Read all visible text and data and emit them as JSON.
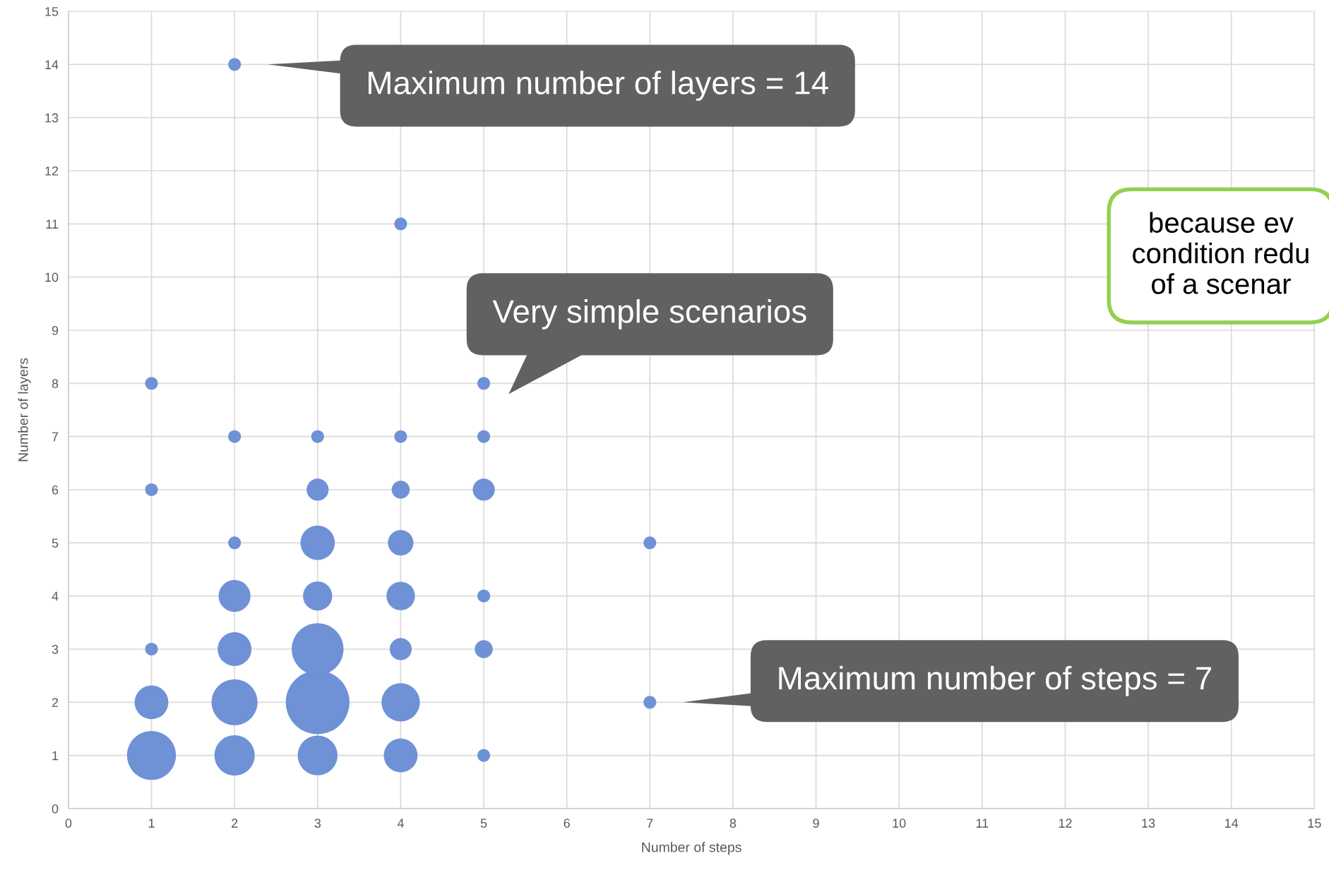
{
  "chart_data": {
    "type": "bubble",
    "xlabel": "Number of steps",
    "ylabel": "Number of layers",
    "x": [
      1,
      1,
      1,
      1,
      1,
      2,
      2,
      2,
      2,
      2,
      2,
      2,
      3,
      3,
      3,
      3,
      3,
      3,
      3,
      4,
      4,
      4,
      4,
      4,
      4,
      4,
      4,
      5,
      5,
      5,
      5,
      5,
      5,
      7,
      7
    ],
    "values": [
      1,
      2,
      3,
      6,
      8,
      1,
      2,
      3,
      4,
      5,
      7,
      14,
      1,
      2,
      3,
      4,
      5,
      6,
      7,
      1,
      2,
      3,
      4,
      5,
      6,
      7,
      11,
      1,
      3,
      4,
      6,
      7,
      8,
      5,
      2
    ],
    "sizes": [
      0.59,
      0.28,
      0.04,
      0.04,
      0.04,
      0.4,
      0.52,
      0.28,
      0.25,
      0.04,
      0.04,
      0.04,
      0.39,
      1,
      0.66,
      0.21,
      0.29,
      0.12,
      0.04,
      0.28,
      0.36,
      0.12,
      0.2,
      0.16,
      0.08,
      0.04,
      0.04,
      0.04,
      0.08,
      0.04,
      0.12,
      0.04,
      0.04,
      0.04,
      0.04
    ],
    "color": "#6f91d6",
    "xlim": [
      0,
      15
    ],
    "ylim": [
      0,
      15
    ],
    "xticks": [
      0,
      1,
      2,
      3,
      4,
      5,
      6,
      7,
      8,
      9,
      10,
      11,
      12,
      13,
      14,
      15
    ],
    "yticks": [
      0,
      1,
      2,
      3,
      4,
      5,
      6,
      7,
      8,
      9,
      10,
      11,
      12,
      13,
      14,
      15
    ],
    "grid": true,
    "annotations": [
      "Maximum number of layers = 14",
      "Maximum number of steps = 7",
      "Very simple scenarios",
      "because ev\ncondition redu\nof a scenar"
    ]
  }
}
